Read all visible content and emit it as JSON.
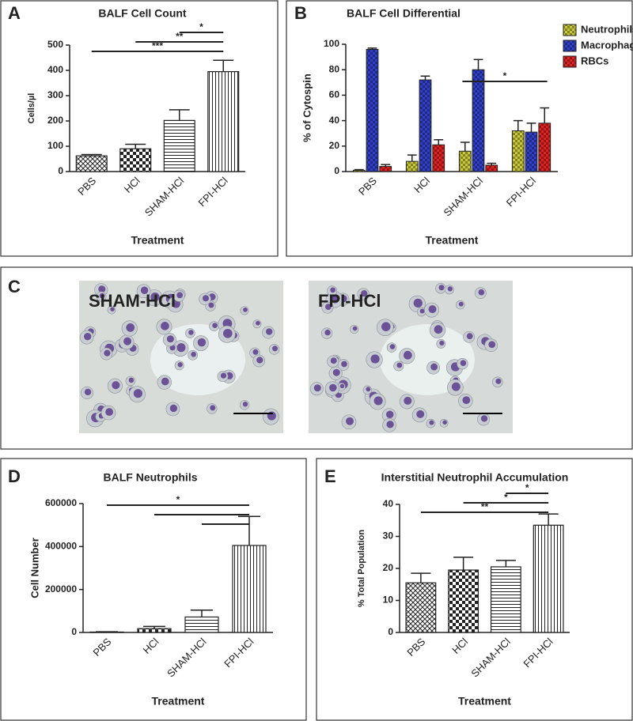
{
  "panel_labels": [
    "A",
    "B",
    "C",
    "D",
    "E"
  ],
  "micrographs": [
    {
      "label": "SHAM-HCl"
    },
    {
      "label": "FPI-HCl"
    }
  ],
  "chart_data": [
    {
      "type": "bar",
      "title": "BALF Cell Count",
      "x_label": "Treatment",
      "y_label": "Cells/µl",
      "categories": [
        "PBS",
        "HCl",
        "SHAM-HCl",
        "FPI-HCl"
      ],
      "values": [
        62,
        90,
        202,
        395
      ],
      "errors": [
        5,
        18,
        42,
        45
      ],
      "ylim": [
        0,
        500
      ],
      "yticks": [
        0,
        100,
        200,
        300,
        400,
        500
      ],
      "annotations": [
        {
          "label": "***",
          "spans": [
            [
              "PBS",
              "FPI-HCl"
            ]
          ]
        },
        {
          "label": "**",
          "spans": [
            [
              "HCl",
              "FPI-HCl"
            ]
          ]
        },
        {
          "label": "*",
          "spans": [
            [
              "SHAM-HCl",
              "FPI-HCl"
            ]
          ]
        }
      ]
    },
    {
      "type": "grouped_bar",
      "title": "BALF Cell Differential",
      "x_label": "Treatment",
      "y_label": "% of Cytospin",
      "categories": [
        "PBS",
        "HCl",
        "SHAM-HCl",
        "FPI-HCl"
      ],
      "series": [
        {
          "name": "Neutrophils",
          "color": "#c8c83a",
          "values": [
            1,
            8,
            16,
            32
          ],
          "errors": [
            0.5,
            5,
            7,
            8
          ]
        },
        {
          "name": "Macrophages",
          "color": "#3140c8",
          "values": [
            96,
            72,
            80,
            31
          ],
          "errors": [
            1,
            3,
            8,
            7
          ]
        },
        {
          "name": "RBCs",
          "color": "#e02222",
          "values": [
            4,
            21,
            5,
            38
          ],
          "errors": [
            1.5,
            4,
            1.5,
            12
          ]
        }
      ],
      "ylim": [
        0,
        100
      ],
      "yticks": [
        0,
        20,
        40,
        60,
        80,
        100
      ],
      "legend": "upper right",
      "annotations": [
        {
          "label": "*",
          "spans": [
            [
              "SHAM-HCl",
              "FPI-HCl"
            ]
          ]
        }
      ]
    },
    {
      "type": "bar",
      "title": "BALF Neutrophils",
      "x_label": "Treatment",
      "y_label": "Cell Number",
      "categories": [
        "PBS",
        "HCl",
        "SHAM-HCl",
        "FPI-HCl"
      ],
      "values": [
        2000,
        18000,
        72000,
        405000
      ],
      "errors": [
        1000,
        10000,
        32000,
        135000
      ],
      "ylim": [
        0,
        600000
      ],
      "yticks": [
        0,
        200000,
        400000,
        600000
      ],
      "annotations": [
        {
          "label": "*",
          "spans": [
            [
              "SHAM-HCl",
              "FPI-HCl"
            ],
            [
              "HCl",
              "FPI-HCl"
            ],
            [
              "PBS",
              "FPI-HCl"
            ]
          ]
        }
      ]
    },
    {
      "type": "bar",
      "title": "Interstitial Neutrophil Accumulation",
      "x_label": "Treatment",
      "y_label": "% Total Population",
      "categories": [
        "PBS",
        "HCl",
        "SHAM-HCl",
        "FPI-HCl"
      ],
      "values": [
        15.5,
        19.5,
        20.5,
        33.5
      ],
      "errors": [
        3,
        4,
        2,
        3.5
      ],
      "ylim": [
        0,
        40
      ],
      "yticks": [
        0,
        10,
        20,
        30,
        40
      ],
      "annotations": [
        {
          "label": "**",
          "spans": [
            [
              "PBS",
              "FPI-HCl"
            ]
          ]
        },
        {
          "label": "*",
          "spans": [
            [
              "HCl",
              "FPI-HCl"
            ]
          ]
        },
        {
          "label": "*",
          "spans": [
            [
              "SHAM-HCl",
              "FPI-HCl"
            ]
          ]
        }
      ]
    }
  ]
}
